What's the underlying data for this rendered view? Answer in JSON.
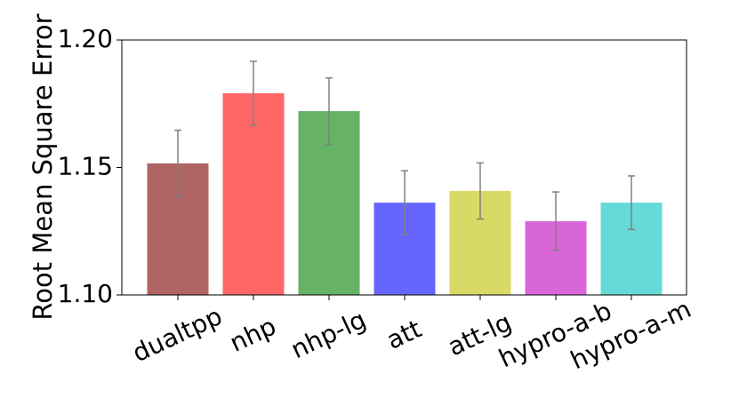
{
  "chart_data": {
    "type": "bar",
    "y_label": "Root Mean Square Error",
    "categories": [
      "dualtpp",
      "nhp",
      "nhp-lg",
      "att",
      "att-lg",
      "hypro-a-b",
      "hypro-a-m"
    ],
    "values": [
      1.1516,
      1.1791,
      1.1721,
      1.1362,
      1.1408,
      1.1289,
      1.1362
    ],
    "errors": [
      0.013,
      0.0125,
      0.013,
      0.0125,
      0.011,
      0.0115,
      0.0105
    ],
    "colors": [
      "#b06464",
      "#ff6666",
      "#66b266",
      "#6666ff",
      "#d9d966",
      "#d966d9",
      "#66d9d9"
    ],
    "ylim": [
      1.1,
      1.2
    ],
    "yticks": [
      {
        "value": 1.1,
        "label": "1.10"
      },
      {
        "value": 1.15,
        "label": "1.15"
      },
      {
        "value": 1.2,
        "label": "1.20"
      }
    ]
  }
}
